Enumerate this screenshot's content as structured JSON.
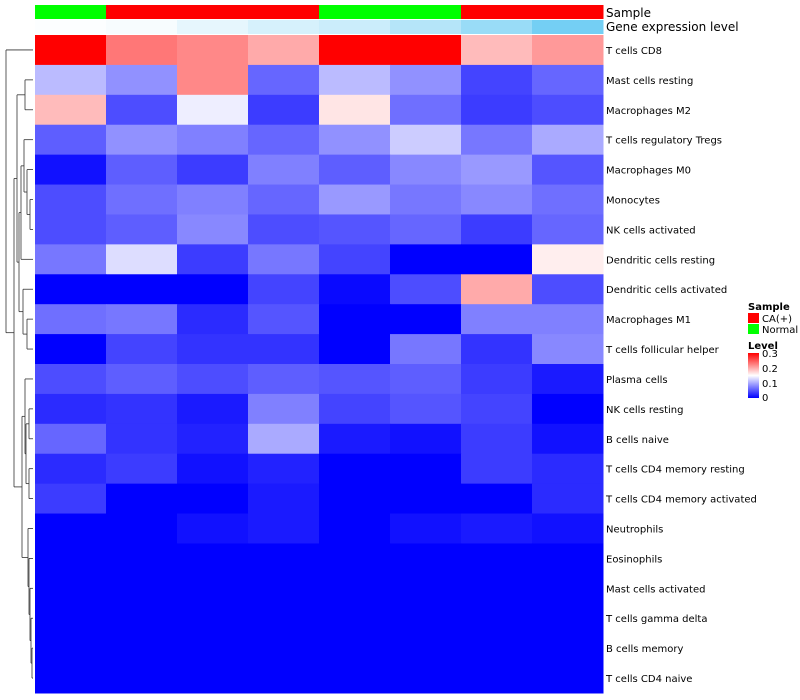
{
  "chart_data": {
    "type": "heatmap",
    "annotation_rows": [
      {
        "name": "Sample",
        "values": [
          "Normal",
          "CA(+)",
          "CA(+)",
          "CA(+)",
          "Normal",
          "Normal",
          "CA(+)",
          "CA(+)"
        ]
      },
      {
        "name": "Gene expression level",
        "values": [
          0.02,
          0.05,
          0.15,
          0.25,
          0.32,
          0.45,
          0.62,
          0.85
        ]
      }
    ],
    "rows": [
      "T cells CD8",
      "Mast cells resting",
      "Macrophages M2",
      "T cells regulatory  Tregs",
      "Macrophages M0",
      "Monocytes",
      "NK cells activated",
      "Dendritic cells resting",
      "Dendritic cells activated",
      "Macrophages M1",
      "T cells follicular helper",
      "Plasma cells",
      "NK cells resting",
      "B cells naive",
      "T cells CD4 memory resting",
      "T cells CD4 memory activated",
      "Neutrophils",
      "Eosinophils",
      "Mast cells activated",
      "T cells gamma delta",
      "B cells memory",
      "T cells CD4 naive"
    ],
    "values": [
      [
        0.3,
        0.23,
        0.22,
        0.2,
        0.3,
        0.3,
        0.19,
        0.21
      ],
      [
        0.11,
        0.085,
        0.22,
        0.06,
        0.11,
        0.085,
        0.04,
        0.06
      ],
      [
        0.19,
        0.045,
        0.14,
        0.035,
        0.165,
        0.065,
        0.035,
        0.045
      ],
      [
        0.055,
        0.085,
        0.075,
        0.06,
        0.085,
        0.12,
        0.07,
        0.1
      ],
      [
        0.01,
        0.055,
        0.035,
        0.075,
        0.055,
        0.08,
        0.09,
        0.05
      ],
      [
        0.045,
        0.065,
        0.075,
        0.06,
        0.09,
        0.07,
        0.08,
        0.065
      ],
      [
        0.045,
        0.055,
        0.08,
        0.045,
        0.05,
        0.06,
        0.035,
        0.06
      ],
      [
        0.07,
        0.13,
        0.035,
        0.07,
        0.04,
        0.0,
        0.0,
        0.16
      ],
      [
        0.0,
        0.0,
        0.0,
        0.04,
        0.005,
        0.045,
        0.2,
        0.045
      ],
      [
        0.065,
        0.07,
        0.025,
        0.05,
        0.0,
        0.0,
        0.075,
        0.075
      ],
      [
        0.0,
        0.04,
        0.03,
        0.03,
        0.0,
        0.07,
        0.03,
        0.08
      ],
      [
        0.045,
        0.055,
        0.045,
        0.055,
        0.05,
        0.055,
        0.035,
        0.015
      ],
      [
        0.025,
        0.03,
        0.015,
        0.075,
        0.04,
        0.05,
        0.04,
        0.0
      ],
      [
        0.06,
        0.03,
        0.02,
        0.1,
        0.015,
        0.01,
        0.035,
        0.01
      ],
      [
        0.025,
        0.035,
        0.01,
        0.02,
        0.0,
        0.0,
        0.035,
        0.025
      ],
      [
        0.035,
        0.0,
        0.0,
        0.015,
        0.0,
        0.0,
        0.0,
        0.025
      ],
      [
        0.0,
        0.0,
        0.01,
        0.015,
        0.0,
        0.01,
        0.015,
        0.01
      ],
      [
        0.0,
        0.0,
        0.0,
        0.0,
        0.0,
        0.0,
        0.0,
        0.0
      ],
      [
        0.0,
        0.0,
        0.0,
        0.0,
        0.0,
        0.0,
        0.0,
        0.0
      ],
      [
        0.0,
        0.0,
        0.0,
        0.0,
        0.0,
        0.0,
        0.0,
        0.0
      ],
      [
        0.0,
        0.0,
        0.0,
        0.0,
        0.0,
        0.0,
        0.0,
        0.0
      ],
      [
        0.0,
        0.0,
        0.0,
        0.0,
        0.0,
        0.0,
        0.0,
        0.0
      ]
    ],
    "color_scale": {
      "min": 0,
      "mid": 0.15,
      "max": 0.3,
      "low": "#0000FF",
      "midColor": "#FFFFFF",
      "high": "#FF0000"
    },
    "legend": {
      "sample_title": "Sample",
      "sample_items": [
        {
          "label": "CA(+)",
          "color": "#FF0000"
        },
        {
          "label": "Normal",
          "color": "#00FF00"
        }
      ],
      "level_title": "Level",
      "level_ticks": [
        "0.3",
        "0.2",
        "0.1",
        "0"
      ],
      "placement": "right"
    },
    "expr_colors": {
      "low": "#FFFFFF",
      "high": "#5BC6F2"
    }
  }
}
